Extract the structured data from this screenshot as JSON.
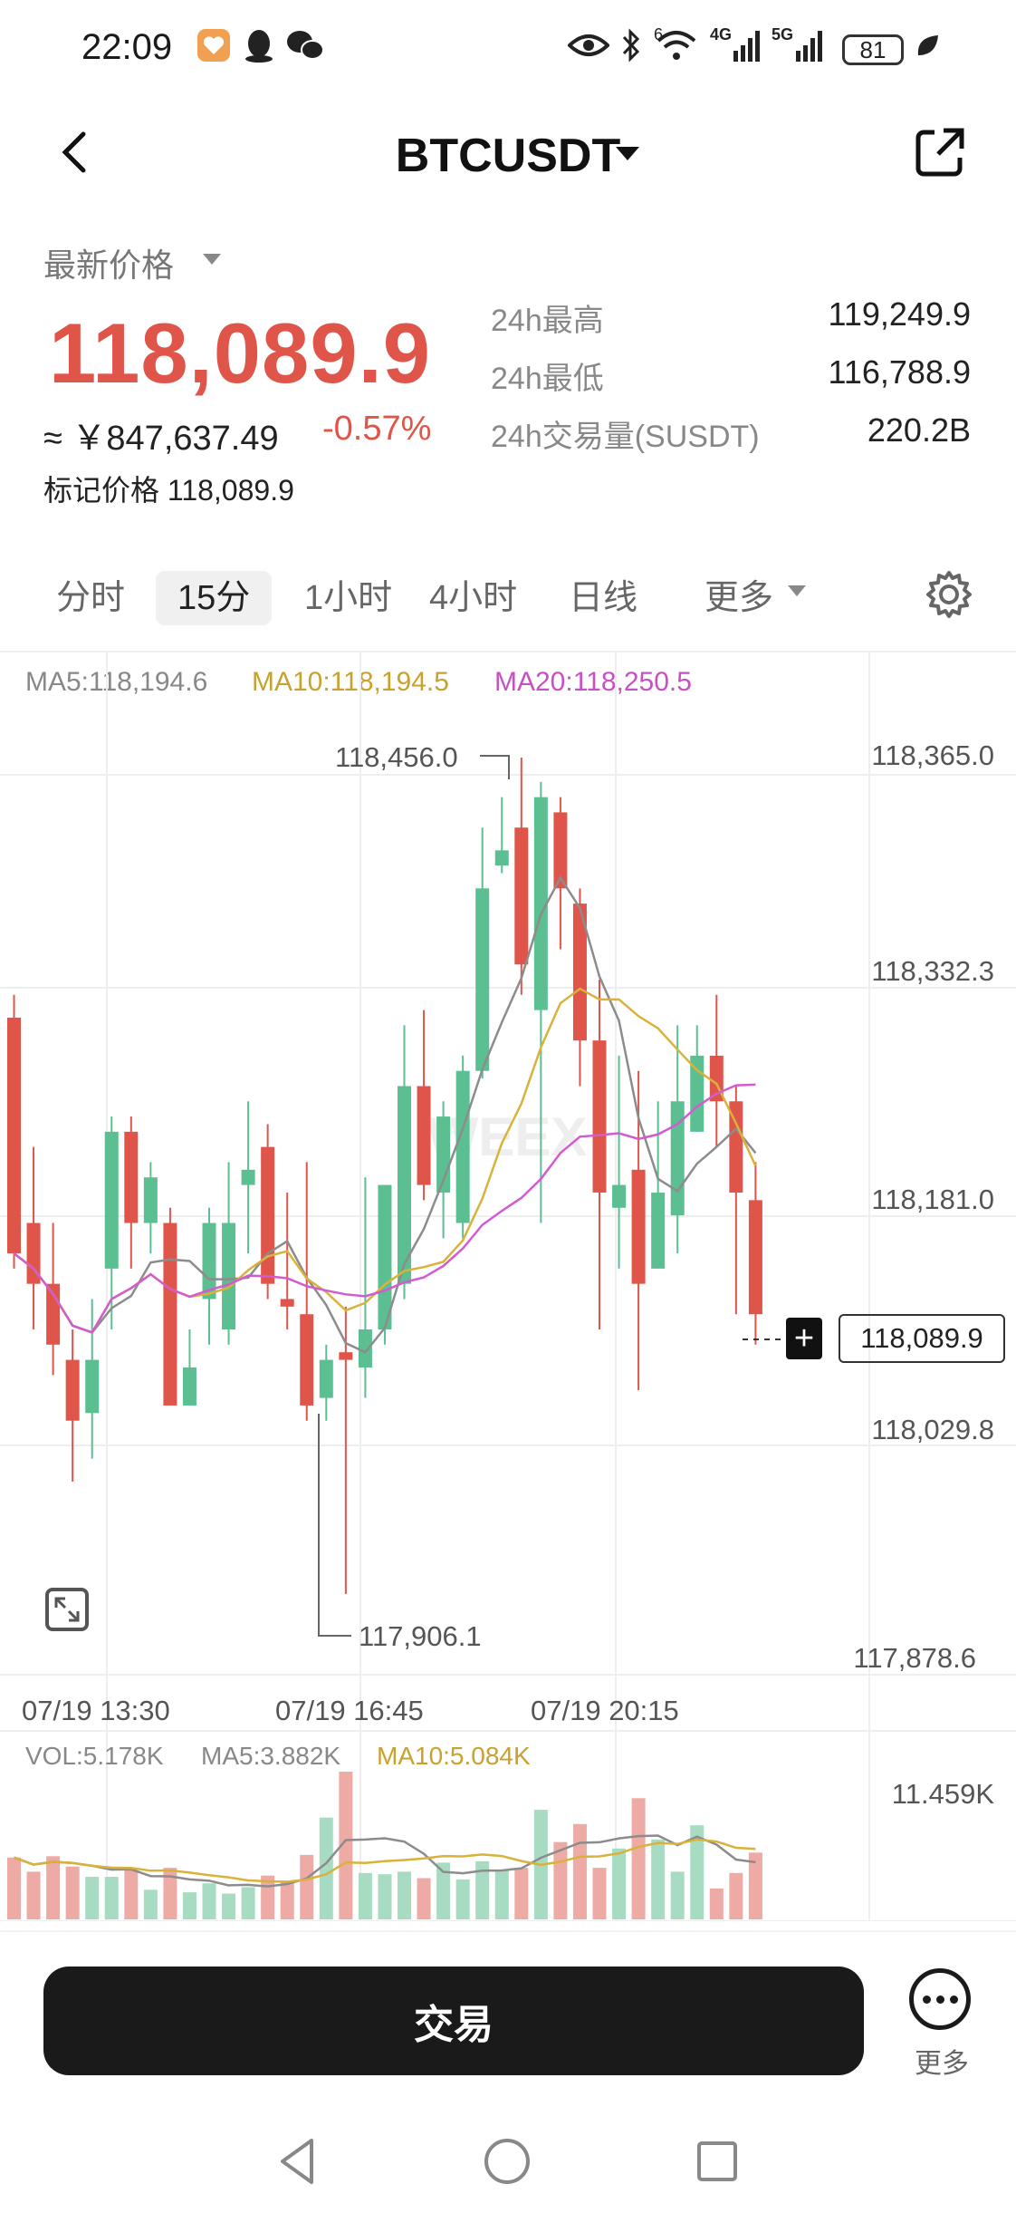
{
  "status_bar": {
    "time": "22:09",
    "network_4g": "4G",
    "network_5g": "5G",
    "wifi_badge": "6",
    "battery": "81"
  },
  "header": {
    "title": "BTCUSDT"
  },
  "price": {
    "latest_label": "最新价格",
    "last_price": "118,089.9",
    "cny_value": "≈ ￥847,637.49",
    "change_pct": "-0.57%",
    "mark_price_label": "标记价格 118,089.9"
  },
  "stats": [
    {
      "label": "24h最高",
      "value": "119,249.9"
    },
    {
      "label": "24h最低",
      "value": "116,788.9"
    },
    {
      "label": "24h交易量(SUSDT)",
      "value": "220.2B"
    }
  ],
  "tabs": {
    "items": [
      "分时",
      "15分",
      "1小时",
      "4小时",
      "日线",
      "更多"
    ],
    "active": "15分"
  },
  "chart": {
    "ma5": "MA5:118,194.6",
    "ma10": "MA10:118,194.5",
    "ma20": "MA20:118,250.5",
    "y_labels": [
      "118,365.0",
      "118,332.3",
      "118,181.0",
      "118,029.8",
      "117,878.6"
    ],
    "high_marker": "118,456.0",
    "low_marker": "117,906.1",
    "current_price_tag": "118,089.9",
    "x_labels": [
      "07/19 13:30",
      "07/19 16:45",
      "07/19 20:15"
    ],
    "vol": "VOL:5.178K",
    "vol_ma5": "MA5:3.882K",
    "vol_ma10": "MA10:5.084K",
    "vol_max": "11.459K",
    "watermark": "WEEX",
    "colors": {
      "up": "#5bbf91",
      "down": "#e0554a",
      "ma5": "#8c8c8c",
      "ma10": "#d9b23a",
      "ma20": "#d35bd0"
    }
  },
  "chart_data": {
    "type": "candlestick",
    "interval": "15m",
    "ylim": [
      117878.6,
      118456.0
    ],
    "candles": [
      [
        118285,
        118130,
        118300,
        118120
      ],
      [
        118150,
        118110,
        118200,
        118080
      ],
      [
        118110,
        118070,
        118150,
        118050
      ],
      [
        118060,
        118020,
        118080,
        117980
      ],
      [
        118025,
        118060,
        118100,
        117995
      ],
      [
        118120,
        118210,
        118220,
        118080
      ],
      [
        118210,
        118150,
        118220,
        118120
      ],
      [
        118150,
        118180,
        118190,
        118130
      ],
      [
        118150,
        118030,
        118160,
        118030
      ],
      [
        118030,
        118055,
        118080,
        118030
      ],
      [
        118100,
        118150,
        118160,
        118070
      ],
      [
        118080,
        118150,
        118190,
        118070
      ],
      [
        118175,
        118185,
        118230,
        118130
      ],
      [
        118200,
        118110,
        118215,
        118100
      ],
      [
        118100,
        118095,
        118170,
        118080
      ],
      [
        118090,
        118030,
        118190,
        118020
      ],
      [
        118035,
        118060,
        118070,
        118020
      ],
      [
        118065,
        118060,
        118095,
        117906.1
      ],
      [
        118055,
        118080,
        118180,
        118035
      ],
      [
        118080,
        118175,
        118130,
        118070
      ],
      [
        118110,
        118240,
        118280,
        118100
      ],
      [
        118240,
        118175,
        118290,
        118165
      ],
      [
        118170,
        118220,
        118230,
        118140
      ],
      [
        118150,
        118250,
        118260,
        118140
      ],
      [
        118250,
        118370,
        118410,
        118245
      ],
      [
        118385,
        118395,
        118430,
        118380
      ],
      [
        118410,
        118320,
        118456,
        118300
      ],
      [
        118290,
        118430,
        118440,
        118150
      ],
      [
        118420,
        118370,
        118430,
        118330
      ],
      [
        118360,
        118270,
        118370,
        118240
      ],
      [
        118270,
        118170,
        118310,
        118080
      ],
      [
        118160,
        118175,
        118260,
        118120
      ],
      [
        118185,
        118110,
        118250,
        118040
      ],
      [
        118120,
        118170,
        118230,
        118140
      ],
      [
        118155,
        118230,
        118280,
        118130
      ],
      [
        118210,
        118260,
        118280,
        118230
      ],
      [
        118260,
        118230,
        118300,
        118200
      ],
      [
        118230,
        118170,
        118240,
        118090
      ],
      [
        118165,
        118090,
        118190,
        118070
      ]
    ],
    "volume": [
      4.8,
      3.7,
      4.9,
      4.1,
      3.3,
      3.3,
      3.8,
      2.3,
      4.0,
      2.1,
      2.8,
      2.0,
      2.5,
      3.4,
      3.0,
      5.0,
      7.9,
      11.459,
      3.6,
      3.5,
      3.7,
      3.2,
      4.4,
      3.1,
      4.5,
      3.8,
      4.0,
      8.5,
      6.0,
      7.4,
      4.0,
      5.5,
      9.4,
      6.2,
      3.7,
      7.3,
      2.4,
      3.6,
      5.178
    ]
  },
  "actions": {
    "trade": "交易",
    "more": "更多"
  }
}
